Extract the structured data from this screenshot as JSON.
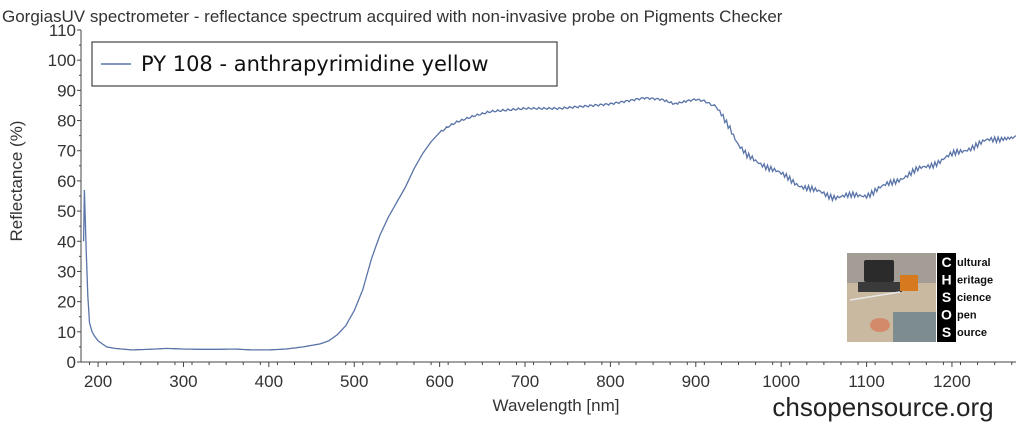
{
  "chart_data": {
    "type": "line",
    "title": "GorgiasUV spectrometer - reflectance spectrum acquired with non-invasive probe on Pigments Checker",
    "xlabel": "Wavelength [nm]",
    "ylabel": "Reflectance (%)",
    "xlim": [
      180,
      1275
    ],
    "ylim": [
      0,
      110
    ],
    "xticks": [
      200,
      300,
      400,
      500,
      600,
      700,
      800,
      900,
      1000,
      1100,
      1200
    ],
    "yticks": [
      0,
      10,
      20,
      30,
      40,
      50,
      60,
      70,
      80,
      90,
      100,
      110
    ],
    "grid": false,
    "legend_position": "top-left",
    "series": [
      {
        "name": "PY 108 - anthrapyrimidine yellow",
        "color": "#5a74a8",
        "points": [
          [
            183,
            40
          ],
          [
            184,
            57
          ],
          [
            186,
            38
          ],
          [
            188,
            22
          ],
          [
            190,
            13
          ],
          [
            193,
            10
          ],
          [
            196,
            8.5
          ],
          [
            200,
            7
          ],
          [
            205,
            6
          ],
          [
            210,
            5
          ],
          [
            220,
            4.5
          ],
          [
            240,
            4
          ],
          [
            260,
            4.2
          ],
          [
            280,
            4.5
          ],
          [
            300,
            4.3
          ],
          [
            320,
            4.2
          ],
          [
            340,
            4.2
          ],
          [
            360,
            4.3
          ],
          [
            380,
            4
          ],
          [
            400,
            4
          ],
          [
            420,
            4.3
          ],
          [
            440,
            5
          ],
          [
            460,
            6
          ],
          [
            470,
            7
          ],
          [
            480,
            9
          ],
          [
            490,
            12
          ],
          [
            500,
            17
          ],
          [
            510,
            24
          ],
          [
            520,
            34
          ],
          [
            530,
            42
          ],
          [
            540,
            48
          ],
          [
            550,
            53
          ],
          [
            560,
            58
          ],
          [
            570,
            64
          ],
          [
            580,
            69
          ],
          [
            590,
            73
          ],
          [
            600,
            76
          ],
          [
            610,
            78
          ],
          [
            620,
            79.5
          ],
          [
            640,
            81.5
          ],
          [
            660,
            83
          ],
          [
            680,
            83.5
          ],
          [
            700,
            84
          ],
          [
            720,
            84
          ],
          [
            740,
            84
          ],
          [
            760,
            84.5
          ],
          [
            780,
            85
          ],
          [
            800,
            85.5
          ],
          [
            820,
            86.5
          ],
          [
            840,
            87.5
          ],
          [
            860,
            87
          ],
          [
            875,
            85.5
          ],
          [
            890,
            86.5
          ],
          [
            900,
            87
          ],
          [
            910,
            86.5
          ],
          [
            920,
            85
          ],
          [
            930,
            82
          ],
          [
            940,
            78
          ],
          [
            950,
            72
          ],
          [
            960,
            68
          ],
          [
            970,
            66.5
          ],
          [
            980,
            65.5
          ],
          [
            990,
            64
          ],
          [
            1000,
            62
          ],
          [
            1020,
            59
          ],
          [
            1040,
            56.5
          ],
          [
            1060,
            55
          ],
          [
            1080,
            54.8
          ],
          [
            1100,
            55.5
          ],
          [
            1120,
            58
          ],
          [
            1140,
            61
          ],
          [
            1160,
            63.5
          ],
          [
            1180,
            66
          ],
          [
            1200,
            68.5
          ],
          [
            1220,
            71
          ],
          [
            1240,
            73
          ],
          [
            1260,
            74.5
          ],
          [
            1275,
            75
          ]
        ]
      }
    ]
  },
  "branding": {
    "website": "chsopensource.org",
    "logo_letters": [
      "C",
      "H",
      "S",
      "O",
      "S"
    ],
    "logo_words": [
      "ultural",
      "eritage",
      "cience",
      "pen",
      "ource"
    ],
    "logo_full_name": "Cultural Heritage Science Open Source"
  }
}
